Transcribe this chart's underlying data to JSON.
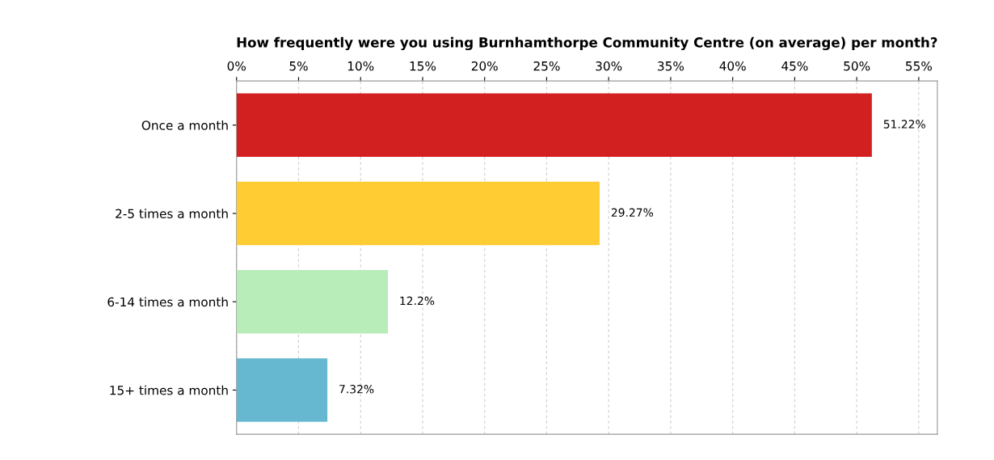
{
  "chart_data": {
    "type": "bar",
    "orientation": "horizontal",
    "title": "How frequently were you using Burnhamthorpe Community Centre (on average) per month?",
    "categories": [
      "Once a month",
      "2-5 times a month",
      "6-14 times a month",
      "15+ times a month"
    ],
    "values": [
      51.22,
      29.27,
      12.2,
      7.32
    ],
    "colors": [
      "#d21f1f",
      "#ffcc33",
      "#b8ecb8",
      "#66b8d0"
    ],
    "value_labels": [
      "51.22%",
      "29.27%",
      "12.2%",
      "7.32%"
    ],
    "xlim": [
      0,
      56.5
    ],
    "xticks": [
      {
        "value": 0,
        "label": "0%"
      },
      {
        "value": 5,
        "label": "5%"
      },
      {
        "value": 10,
        "label": "10%"
      },
      {
        "value": 15,
        "label": "15%"
      },
      {
        "value": 20,
        "label": "20%"
      },
      {
        "value": 25,
        "label": "25%"
      },
      {
        "value": 30,
        "label": "30%"
      },
      {
        "value": 35,
        "label": "35%"
      },
      {
        "value": 40,
        "label": "40%"
      },
      {
        "value": 45,
        "label": "45%"
      },
      {
        "value": 50,
        "label": "50%"
      },
      {
        "value": 55,
        "label": "55%"
      }
    ],
    "grid": "x",
    "legend": false
  }
}
